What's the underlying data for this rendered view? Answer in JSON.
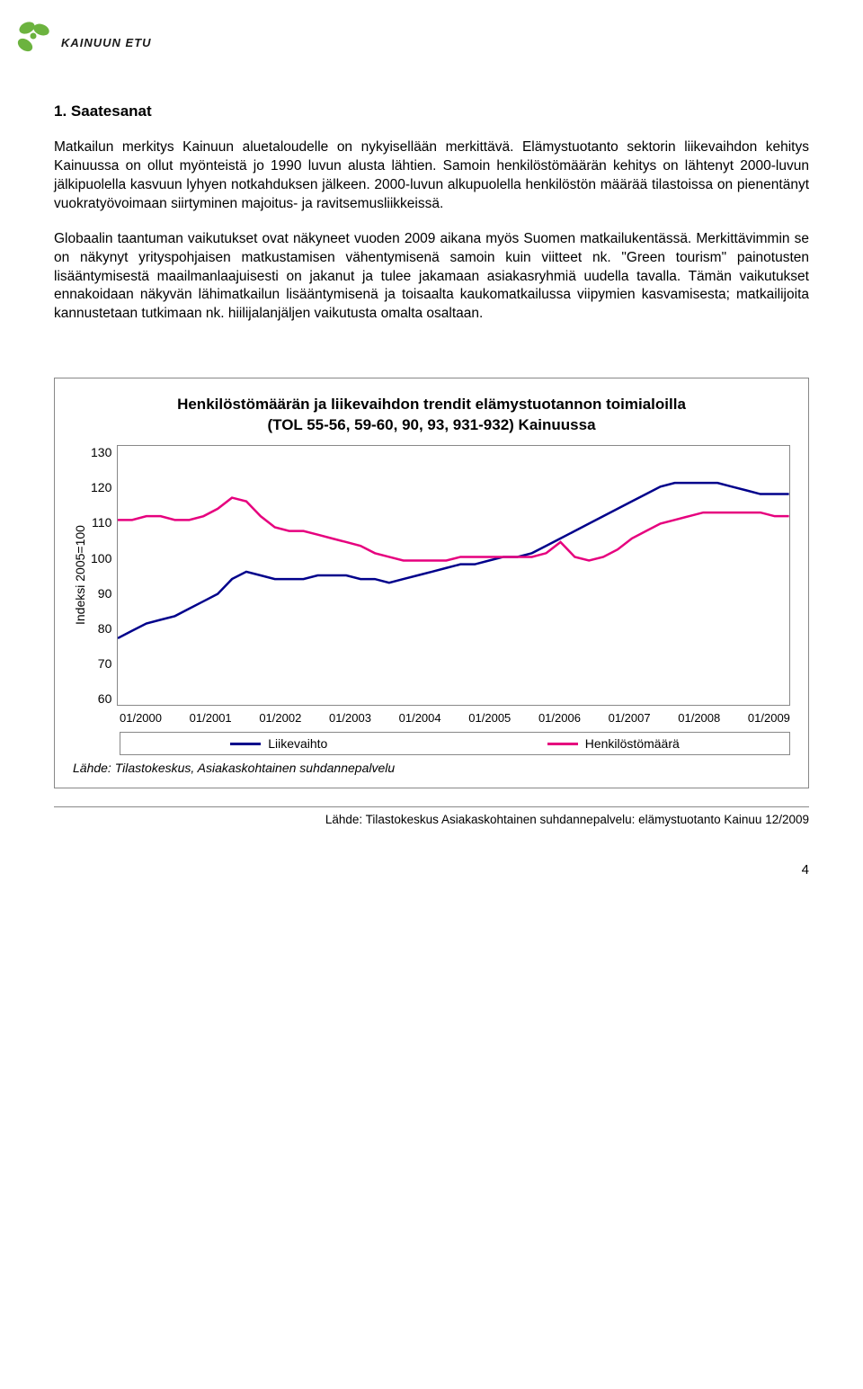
{
  "logo": {
    "brand_color": "#6CB33F",
    "text": "KAINUUN ETU"
  },
  "heading": "1. Saatesanat",
  "paragraphs": [
    "Matkailun merkitys Kainuun aluetaloudelle on nykyisellään merkittävä. Elämystuotanto sektorin liikevaihdon kehitys Kainuussa on ollut myönteistä jo 1990 luvun alusta lähtien. Samoin henkilöstömäärän kehitys on lähtenyt 2000-luvun jälkipuolella kasvuun lyhyen notkahduksen jälkeen. 2000-luvun alkupuolella henkilöstön määrää tilastoissa on pienentänyt vuokratyövoimaan siirtyminen majoitus- ja ravitsemusliikkeissä.",
    "Globaalin taantuman vaikutukset ovat näkyneet vuoden 2009 aikana myös Suomen matkailukentässä. Merkittävimmin se on näkynyt yrityspohjaisen matkustamisen vähentymisenä samoin kuin viitteet nk. \"Green tourism\" painotusten lisääntymisestä maailmanlaajuisesti on jakanut ja tulee jakamaan asiakasryhmiä uudella tavalla. Tämän vaikutukset ennakoidaan näkyvän lähimatkailun lisääntymisenä ja toisaalta kaukomatkailussa viipymien kasvamisesta; matkailijoita kannustetaan tutkimaan nk. hiilijalanjäljen vaikutusta omalta osaltaan."
  ],
  "chart": {
    "title_line1": "Henkilöstömäärän ja liikevaihdon trendit elämystuotannon toimialoilla",
    "title_line2": "(TOL 55-56, 59-60, 90, 93, 931-932) Kainuussa",
    "y_label": "Indeksi 2005=100",
    "y_ticks": [
      "130",
      "120",
      "110",
      "100",
      "90",
      "80",
      "70",
      "60"
    ],
    "x_ticks": [
      "01/2000",
      "01/2001",
      "01/2002",
      "01/2003",
      "01/2004",
      "01/2005",
      "01/2006",
      "01/2007",
      "01/2008",
      "01/2009"
    ],
    "ylim": [
      60,
      130
    ],
    "series": {
      "liikevaihto": {
        "label": "Liikevaihto",
        "color": "#00008B",
        "stroke_width": 2.5,
        "values": [
          78,
          80,
          82,
          83,
          84,
          86,
          88,
          90,
          94,
          96,
          95,
          94,
          94,
          94,
          95,
          95,
          95,
          94,
          94,
          93,
          94,
          95,
          96,
          97,
          98,
          98,
          99,
          100,
          100,
          101,
          103,
          105,
          107,
          109,
          111,
          113,
          115,
          117,
          119,
          120,
          120,
          120,
          120,
          119,
          118,
          117,
          117,
          117
        ]
      },
      "henkilostomaara": {
        "label": "Henkilöstömäärä",
        "color": "#E6007E",
        "stroke_width": 2.5,
        "values": [
          110,
          110,
          111,
          111,
          110,
          110,
          111,
          113,
          116,
          115,
          111,
          108,
          107,
          107,
          106,
          105,
          104,
          103,
          101,
          100,
          99,
          99,
          99,
          99,
          100,
          100,
          100,
          100,
          100,
          100,
          101,
          104,
          100,
          99,
          100,
          102,
          105,
          107,
          109,
          110,
          111,
          112,
          112,
          112,
          112,
          112,
          111,
          111
        ]
      }
    },
    "border_color": "#888888",
    "background_color": "#ffffff",
    "source_inner": "Lähde: Tilastokeskus, Asiakaskohtainen suhdannepalvelu"
  },
  "footer_source": "Lähde: Tilastokeskus Asiakaskohtainen suhdannepalvelu: elämystuotanto Kainuu 12/2009",
  "page_number": "4"
}
